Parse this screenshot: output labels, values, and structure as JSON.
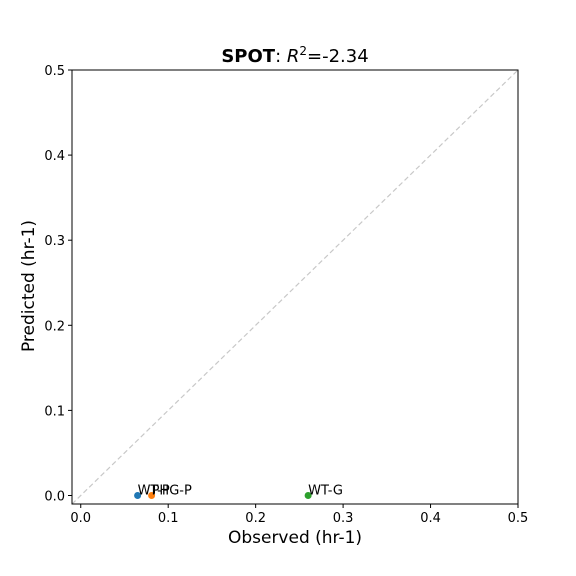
{
  "chart_data": {
    "type": "scatter",
    "title": {
      "model": "SPOT",
      "metric_prefix": ": ",
      "metric_symbol": "R",
      "metric_exponent": "2",
      "metric_value": "=-2.34"
    },
    "xlabel": "Observed (hr-1)",
    "ylabel": "Predicted (hr-1)",
    "xlim": [
      -0.01,
      0.5
    ],
    "ylim": [
      -0.01,
      0.5
    ],
    "xticks": [
      0.0,
      0.1,
      0.2,
      0.3,
      0.4,
      0.5
    ],
    "xtick_labels": [
      "0.0",
      "0.1",
      "0.2",
      "0.3",
      "0.4",
      "0.5"
    ],
    "yticks": [
      0.0,
      0.1,
      0.2,
      0.3,
      0.4,
      0.5
    ],
    "ytick_labels": [
      "0.0",
      "0.1",
      "0.2",
      "0.3",
      "0.4",
      "0.5"
    ],
    "grid": false,
    "reference_line": "y=x",
    "points": [
      {
        "label": "WT-P",
        "x": 0.065,
        "y": 0.0,
        "color": "#1f77b4"
      },
      {
        "label": "PHG-P",
        "x": 0.081,
        "y": 0.0,
        "color": "#ff7f0e"
      },
      {
        "label": "WT-G",
        "x": 0.26,
        "y": 0.0,
        "color": "#2ca02c"
      }
    ]
  }
}
